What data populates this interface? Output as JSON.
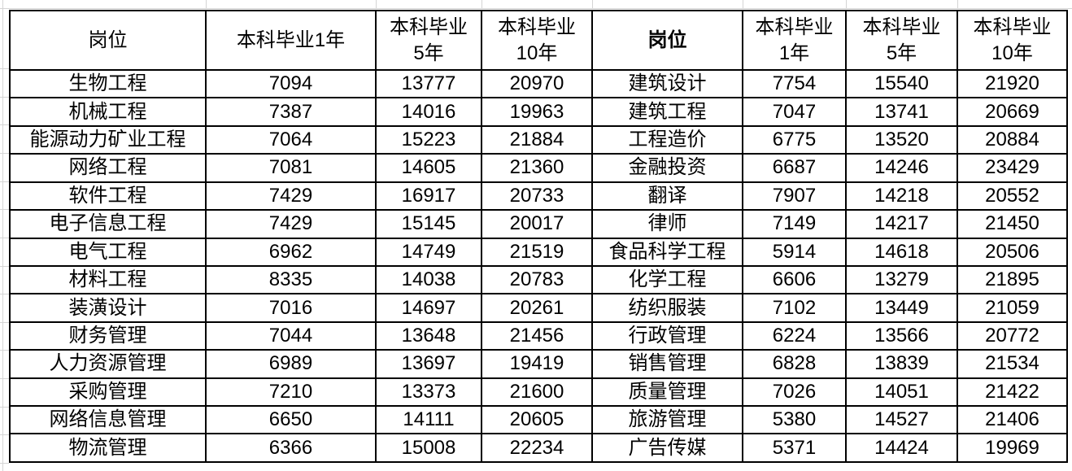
{
  "grid_color": "#d4d4d4",
  "table": {
    "left": {
      "headers": [
        "岗位",
        "本科毕业1年",
        "本科毕业\n5年",
        "本科毕业\n10年"
      ],
      "rows": [
        [
          "生物工程",
          "7094",
          "13777",
          "20970"
        ],
        [
          "机械工程",
          "7387",
          "14016",
          "19963"
        ],
        [
          "能源动力矿业工程",
          "7064",
          "15223",
          "21884"
        ],
        [
          "网络工程",
          "7081",
          "14605",
          "21360"
        ],
        [
          "软件工程",
          "7429",
          "16917",
          "20733"
        ],
        [
          "电子信息工程",
          "7429",
          "15145",
          "20017"
        ],
        [
          "电气工程",
          "6962",
          "14749",
          "21519"
        ],
        [
          "材料工程",
          "8335",
          "14038",
          "20783"
        ],
        [
          "装潢设计",
          "7016",
          "14697",
          "20261"
        ],
        [
          "财务管理",
          "7044",
          "13648",
          "21456"
        ],
        [
          "人力资源管理",
          "6989",
          "13697",
          "19419"
        ],
        [
          "采购管理",
          "7210",
          "13373",
          "21600"
        ],
        [
          "网络信息管理",
          "6650",
          "14111",
          "20605"
        ],
        [
          "物流管理",
          "6366",
          "15008",
          "22234"
        ]
      ]
    },
    "right": {
      "headers": [
        "岗位",
        "本科毕业\n1年",
        "本科毕业\n5年",
        "本科毕业\n10年"
      ],
      "rows": [
        [
          "建筑设计",
          "7754",
          "15540",
          "21920"
        ],
        [
          "建筑工程",
          "7047",
          "13741",
          "20669"
        ],
        [
          "工程造价",
          "6775",
          "13520",
          "20884"
        ],
        [
          "金融投资",
          "6687",
          "14246",
          "23429"
        ],
        [
          "翻译",
          "7907",
          "14218",
          "20552"
        ],
        [
          "律师",
          "7149",
          "14217",
          "21450"
        ],
        [
          "食品科学工程",
          "5914",
          "14618",
          "20506"
        ],
        [
          "化学工程",
          "6606",
          "13279",
          "21895"
        ],
        [
          "纺织服装",
          "7102",
          "13449",
          "21059"
        ],
        [
          "行政管理",
          "6224",
          "13566",
          "20772"
        ],
        [
          "销售管理",
          "6828",
          "13839",
          "21534"
        ],
        [
          "质量管理",
          "7026",
          "14051",
          "21422"
        ],
        [
          "旅游管理",
          "5380",
          "14527",
          "21406"
        ],
        [
          "广告传媒",
          "5371",
          "14424",
          "19969"
        ]
      ]
    }
  }
}
